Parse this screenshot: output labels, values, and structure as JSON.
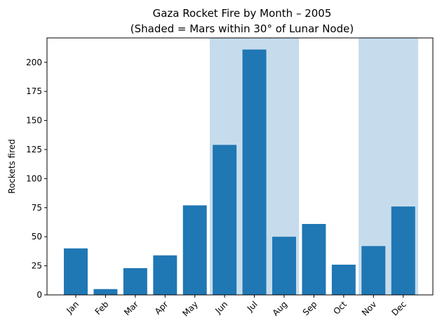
{
  "chart_data": {
    "type": "bar",
    "title": "Gaza Rocket Fire by Month – 2005",
    "subtitle": "(Shaded = Mars within 30° of Lunar Node)",
    "xlabel": "",
    "ylabel": "Rockets fired",
    "categories": [
      "Jan",
      "Feb",
      "Mar",
      "Apr",
      "May",
      "Jun",
      "Jul",
      "Aug",
      "Sep",
      "Oct",
      "Nov",
      "Dec"
    ],
    "values": [
      40,
      5,
      23,
      34,
      77,
      129,
      211,
      50,
      61,
      26,
      42,
      76
    ],
    "ylim": [
      0,
      221
    ],
    "yticks": [
      0,
      25,
      50,
      75,
      100,
      125,
      150,
      175,
      200
    ],
    "shaded_ranges": [
      [
        "Jun",
        "Aug"
      ],
      [
        "Nov",
        "Dec"
      ]
    ],
    "bar_color": "#1f77b4",
    "shade_color": "#c6dcec",
    "grid": false
  }
}
